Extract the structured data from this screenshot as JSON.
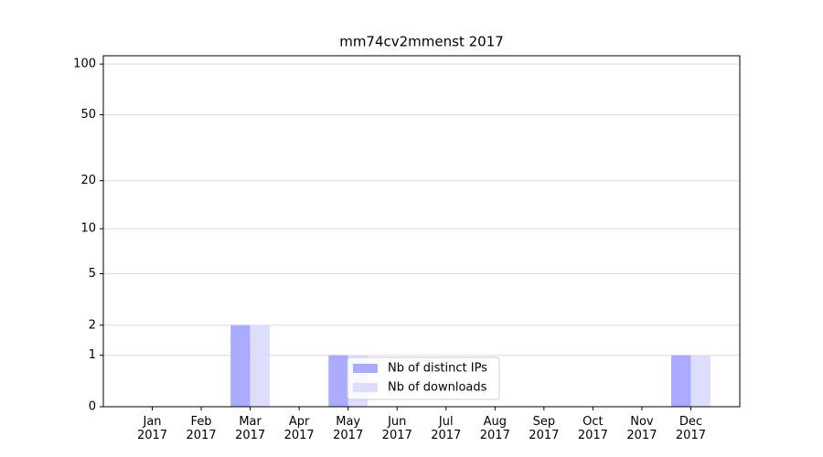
{
  "chart_data": {
    "type": "bar",
    "title": "mm74cv2mmenst 2017",
    "categories": [
      "Jan\n2017",
      "Feb\n2017",
      "Mar\n2017",
      "Apr\n2017",
      "May\n2017",
      "Jun\n2017",
      "Jul\n2017",
      "Aug\n2017",
      "Sep\n2017",
      "Oct\n2017",
      "Nov\n2017",
      "Dec\n2017"
    ],
    "series": [
      {
        "name": "Nb of distinct IPs",
        "color": "#aaaaff",
        "values": [
          0,
          0,
          2,
          0,
          1,
          0,
          0,
          0,
          0,
          0,
          0,
          1
        ]
      },
      {
        "name": "Nb of downloads",
        "color": "#ddddff",
        "values": [
          0,
          0,
          2,
          0,
          1,
          0,
          0,
          0,
          0,
          0,
          0,
          1
        ]
      }
    ],
    "yscale": "log1p",
    "ylim": [
      0,
      112
    ],
    "yticks": [
      0,
      1,
      2,
      5,
      10,
      20,
      50,
      100
    ],
    "grid": true,
    "legend": "lower center"
  }
}
